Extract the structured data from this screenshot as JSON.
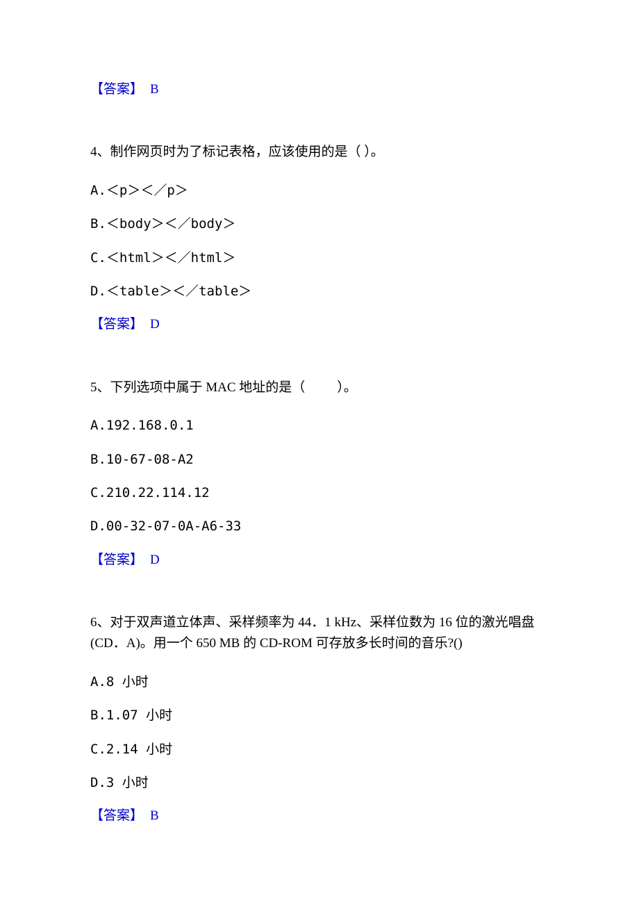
{
  "colors": {
    "text": "#000000",
    "answer": "#0000cc",
    "background": "#ffffff"
  },
  "typography": {
    "font_family": "SimSun",
    "font_size_pt": 14,
    "line_height": 1.6
  },
  "q3": {
    "answer_label": "【答案】",
    "answer_value": "B"
  },
  "q4": {
    "stem": "4、制作网页时为了标记表格，应该使用的是（ ）。",
    "options": {
      "a": "A.＜p＞＜／p＞",
      "b": "B.＜body＞＜／body＞",
      "c": "C.＜html＞＜／html＞",
      "d": "D.＜table＞＜／table＞"
    },
    "answer_label": "【答案】",
    "answer_value": "D"
  },
  "q5": {
    "stem_pre": "5、下列选项中属于 MAC 地址的是（",
    "stem_post": "）。",
    "options": {
      "a": "A.192.168.0.1",
      "b": "B.10-67-08-A2",
      "c": "C.210.22.114.12",
      "d": "D.00-32-07-0A-A6-33"
    },
    "answer_label": "【答案】",
    "answer_value": "D"
  },
  "q6": {
    "stem": "6、对于双声道立体声、采样频率为 44．1 kHz、采样位数为 16 位的激光唱盘(CD．A)。用一个 650 MB 的 CD-ROM 可存放多长时间的音乐?()",
    "options": {
      "a": "A.8 小时",
      "b": "B.1.07 小时",
      "c": "C.2.14 小时",
      "d": "D.3 小时"
    },
    "answer_label": "【答案】",
    "answer_value": "B"
  }
}
